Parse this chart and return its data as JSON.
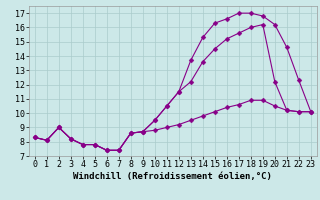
{
  "xlabel": "Windchill (Refroidissement éolien,°C)",
  "xlim": [
    -0.5,
    23.5
  ],
  "ylim": [
    7,
    17.5
  ],
  "xticks": [
    0,
    1,
    2,
    3,
    4,
    5,
    6,
    7,
    8,
    9,
    10,
    11,
    12,
    13,
    14,
    15,
    16,
    17,
    18,
    19,
    20,
    21,
    22,
    23
  ],
  "yticks": [
    7,
    8,
    9,
    10,
    11,
    12,
    13,
    14,
    15,
    16,
    17
  ],
  "bg_color": "#cce8e8",
  "line_color": "#880088",
  "line1_x": [
    0,
    1,
    2,
    3,
    4,
    5,
    6,
    7,
    8,
    9,
    10,
    11,
    12,
    13,
    14,
    15,
    16,
    17,
    18,
    19,
    20,
    21,
    22,
    23
  ],
  "line1_y": [
    8.3,
    8.1,
    9.0,
    8.2,
    7.8,
    7.8,
    7.4,
    7.4,
    8.6,
    8.7,
    8.8,
    9.0,
    9.2,
    9.5,
    9.8,
    10.1,
    10.4,
    10.6,
    10.9,
    10.9,
    10.5,
    10.2,
    10.1,
    10.1
  ],
  "line2_x": [
    0,
    1,
    2,
    3,
    4,
    5,
    6,
    7,
    8,
    9,
    10,
    11,
    12,
    13,
    14,
    15,
    16,
    17,
    18,
    19,
    20,
    21,
    22,
    23
  ],
  "line2_y": [
    8.3,
    8.1,
    9.0,
    8.2,
    7.8,
    7.8,
    7.4,
    7.4,
    8.6,
    8.7,
    9.5,
    10.5,
    11.5,
    12.2,
    13.6,
    14.5,
    15.2,
    15.6,
    16.0,
    16.2,
    12.2,
    10.2,
    10.1,
    10.1
  ],
  "line3_x": [
    0,
    1,
    2,
    3,
    4,
    5,
    6,
    7,
    8,
    9,
    10,
    11,
    12,
    13,
    14,
    15,
    16,
    17,
    18,
    19,
    20,
    21,
    22,
    23
  ],
  "line3_y": [
    8.3,
    8.1,
    9.0,
    8.2,
    7.8,
    7.8,
    7.4,
    7.4,
    8.6,
    8.7,
    9.5,
    10.5,
    11.5,
    13.7,
    15.3,
    16.3,
    16.6,
    17.0,
    17.0,
    16.8,
    16.2,
    14.6,
    12.3,
    10.1
  ],
  "marker": "D",
  "markersize": 2.5,
  "linewidth": 0.8,
  "grid_color": "#aacccc",
  "xlabel_fontsize": 6.5,
  "tick_fontsize": 6
}
